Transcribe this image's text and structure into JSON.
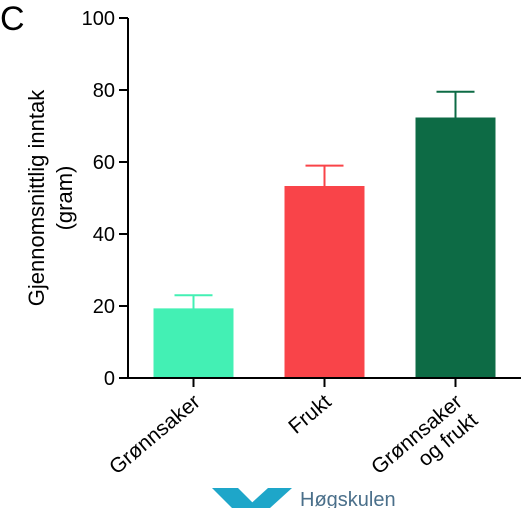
{
  "panel_label": "C",
  "watermark": {
    "text": "Høgskulen",
    "color": "#1ea6c9"
  },
  "chart_data": {
    "type": "bar",
    "title": "",
    "xlabel": "",
    "ylabel": "Gjennomsnittlig inntak (gram)",
    "ylabel_lines": [
      "Gjennomsnittlig inntak",
      "(gram)"
    ],
    "categories": [
      "Grønnsaker",
      "Frukt",
      "Grønnsaker og frukt"
    ],
    "category_lines": [
      [
        "Grønnsaker"
      ],
      [
        "Frukt"
      ],
      [
        "Grønnsaker",
        "og frukt"
      ]
    ],
    "values": [
      19,
      53,
      72
    ],
    "errors": [
      4,
      6,
      7.5
    ],
    "colors": [
      "#43f0b4",
      "#f94449",
      "#0d6b45"
    ],
    "error_colors": [
      "#43f0b4",
      "#f94449",
      "#0d6b45"
    ],
    "ylim": [
      0,
      100
    ],
    "yticks": [
      0,
      20,
      40,
      60,
      80,
      100
    ],
    "grid": false,
    "legend": "none"
  }
}
